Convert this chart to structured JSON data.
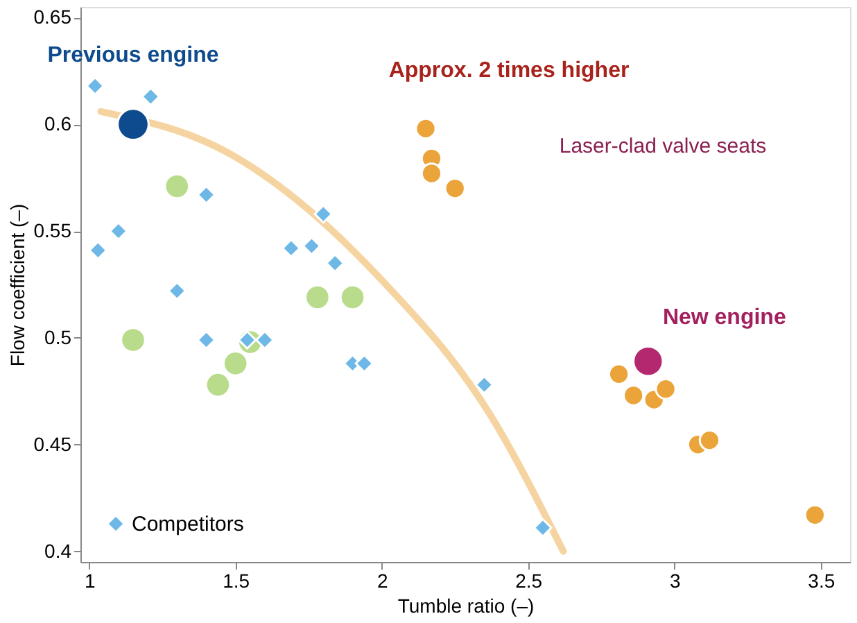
{
  "chart_data": {
    "type": "scatter",
    "xlabel": "Tumble ratio (–)",
    "ylabel": "Flow coefficient (–)",
    "xlim": [
      0.97,
      3.6
    ],
    "ylim": [
      0.395,
      0.655
    ],
    "xticks": [
      1,
      1.5,
      2,
      2.5,
      3,
      3.5
    ],
    "yticks": [
      0.4,
      0.45,
      0.5,
      0.55,
      0.6,
      0.65
    ],
    "grid": false,
    "legend": "bottom left",
    "series": [
      {
        "type": "line",
        "color": "#f2c98a",
        "x": [
          1.04,
          1.47,
          2.0,
          2.37,
          2.62
        ],
        "values": [
          0.606,
          0.587,
          0.527,
          0.464,
          0.4
        ]
      },
      {
        "marker": "circle",
        "color": "#b9dc8c",
        "x": [
          1.15,
          1.3,
          1.78,
          1.9,
          1.5,
          1.44,
          1.55
        ],
        "values": [
          0.499,
          0.571,
          0.519,
          0.519,
          0.488,
          0.478,
          0.498
        ]
      },
      {
        "name": "Competitors",
        "marker": "diamond",
        "color": "#6db8e6",
        "x": [
          1.02,
          1.21,
          1.03,
          1.1,
          1.3,
          1.4,
          1.4,
          1.54,
          1.6,
          1.69,
          1.76,
          1.8,
          1.84,
          1.9,
          1.94,
          2.35,
          2.55
        ],
        "values": [
          0.618,
          0.613,
          0.541,
          0.55,
          0.522,
          0.567,
          0.499,
          0.499,
          0.499,
          0.542,
          0.543,
          0.558,
          0.535,
          0.488,
          0.488,
          0.478,
          0.411
        ]
      },
      {
        "marker": "circle",
        "color": "#eba43a",
        "x": [
          2.15,
          2.17,
          2.17,
          2.25,
          2.81,
          2.86,
          2.93,
          2.97,
          3.08,
          3.12,
          3.48
        ],
        "values": [
          0.598,
          0.584,
          0.577,
          0.57,
          0.483,
          0.473,
          0.471,
          0.476,
          0.45,
          0.452,
          0.417
        ]
      },
      {
        "marker": "circle",
        "color": "#0e4a8e",
        "x": [
          1.15
        ],
        "values": [
          0.6
        ]
      },
      {
        "marker": "circle",
        "color": "#b3286f",
        "x": [
          2.91
        ],
        "values": [
          0.489
        ]
      }
    ],
    "annotations": [
      {
        "text": "Previous engine",
        "x": 1.15,
        "y": 0.6
      },
      {
        "text": "Approx. 2 times higher",
        "x": 2.15,
        "y": 0.598
      },
      "Laser-clad valve seats",
      {
        "text": "New engine",
        "x": 2.91,
        "y": 0.489
      }
    ]
  }
}
